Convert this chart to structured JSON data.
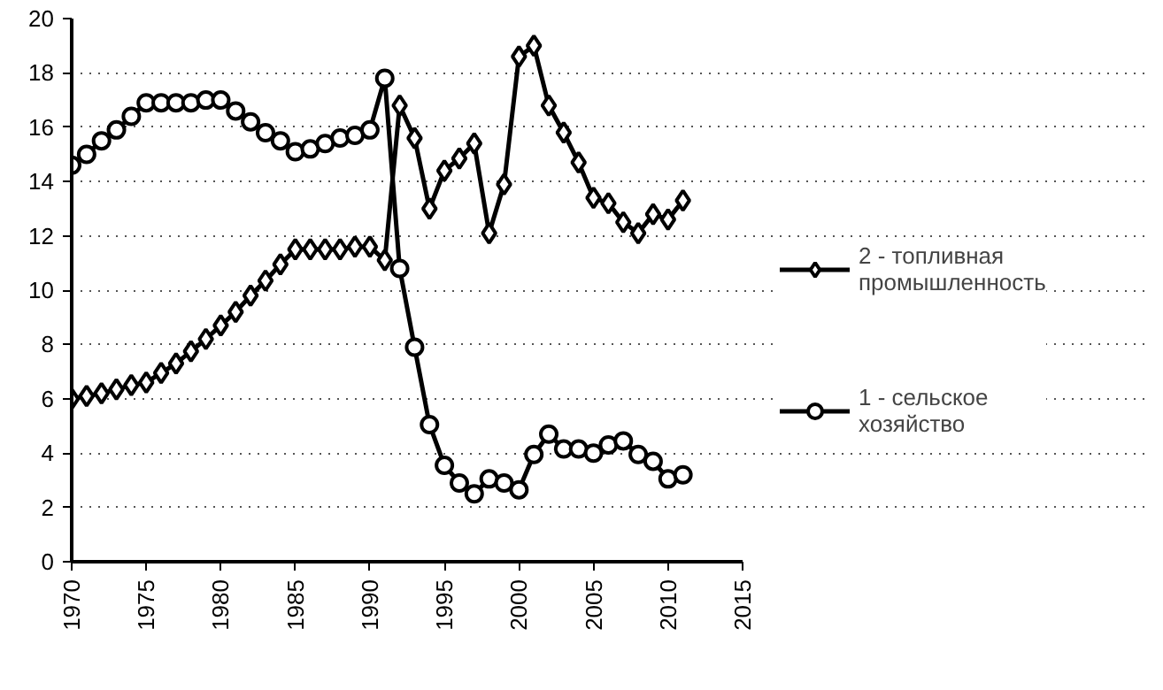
{
  "chart_data": {
    "type": "line",
    "x": [
      1970,
      1971,
      1972,
      1973,
      1974,
      1975,
      1976,
      1977,
      1978,
      1979,
      1980,
      1981,
      1982,
      1983,
      1984,
      1985,
      1986,
      1987,
      1988,
      1989,
      1990,
      1991,
      1992,
      1993,
      1994,
      1995,
      1996,
      1997,
      1998,
      1999,
      2000,
      2001,
      2002,
      2003,
      2004,
      2005,
      2006,
      2007,
      2008,
      2009,
      2010,
      2011
    ],
    "series": [
      {
        "name": "2 - топливная промышленность",
        "color": "#000000",
        "marker": "diamond",
        "values": [
          6.0,
          6.1,
          6.2,
          6.35,
          6.5,
          6.6,
          6.95,
          7.3,
          7.75,
          8.2,
          8.7,
          9.2,
          9.8,
          10.35,
          10.95,
          11.5,
          11.5,
          11.5,
          11.5,
          11.6,
          11.6,
          11.1,
          16.8,
          15.6,
          13.0,
          14.4,
          14.85,
          15.4,
          12.1,
          13.9,
          18.6,
          19.0,
          16.8,
          15.8,
          14.7,
          13.4,
          13.2,
          12.5,
          12.1,
          12.8,
          12.6,
          13.3
        ]
      },
      {
        "name": "1 - сельское хозяйство",
        "color": "#000000",
        "marker": "circle",
        "values": [
          14.6,
          15.0,
          15.5,
          15.9,
          16.4,
          16.9,
          16.9,
          16.9,
          16.9,
          17.0,
          17.0,
          16.6,
          16.2,
          15.8,
          15.5,
          15.1,
          15.2,
          15.4,
          15.6,
          15.7,
          15.9,
          17.8,
          10.8,
          7.9,
          5.05,
          3.55,
          2.9,
          2.5,
          3.05,
          2.9,
          2.65,
          3.95,
          4.7,
          4.15,
          4.15,
          4.0,
          4.3,
          4.45,
          3.95,
          3.7,
          3.05,
          3.2
        ]
      }
    ],
    "xlim": [
      1970,
      2015
    ],
    "xticks": [
      1970,
      1975,
      1980,
      1985,
      1990,
      1995,
      2000,
      2005,
      2010,
      2015
    ],
    "ylim": [
      0,
      20
    ],
    "yticks": [
      0,
      2,
      4,
      6,
      8,
      10,
      12,
      14,
      16,
      18,
      20
    ],
    "grid": "y",
    "legend": "right",
    "line_style": "solid"
  }
}
